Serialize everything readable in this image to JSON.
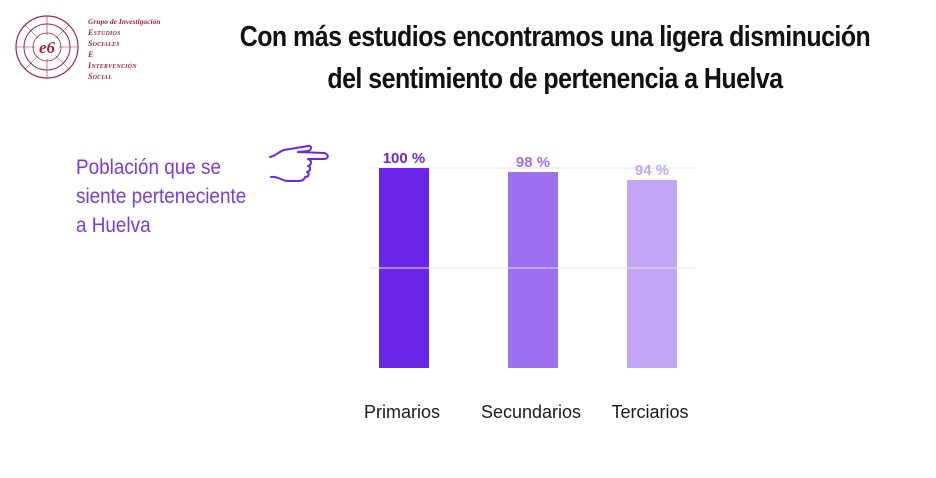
{
  "logo": {
    "group_label": "Grupo de Investigación",
    "lines": [
      "Estudios",
      "Sociales",
      "E",
      "Intervención",
      "Social"
    ],
    "emblem_text": "e6",
    "color": "#a0283a"
  },
  "title_lines": [
    "Con más estudios encontramos una ligera disminución",
    "del sentimiento de pertenencia a Huelva"
  ],
  "side_label": "Población que se siente perteneciente a Huelva",
  "icons": {
    "pointer": "pointing-hand-icon"
  },
  "chart_data": {
    "type": "bar",
    "title": "",
    "xlabel": "",
    "ylabel": "",
    "categories": [
      "Primarios",
      "Secundarios",
      "Terciarios"
    ],
    "values": [
      100,
      98,
      94
    ],
    "value_labels": [
      "100 %",
      "98 %",
      "94 %"
    ],
    "colors": [
      "#6a26e8",
      "#9d70f2",
      "#c3a6f6"
    ],
    "label_colors": [
      "#6a26e8",
      "#9d70f2",
      "#c3a6f6"
    ],
    "ylim": [
      0,
      100
    ],
    "gridlines": [
      50,
      100
    ],
    "grid": true,
    "legend": "none"
  }
}
